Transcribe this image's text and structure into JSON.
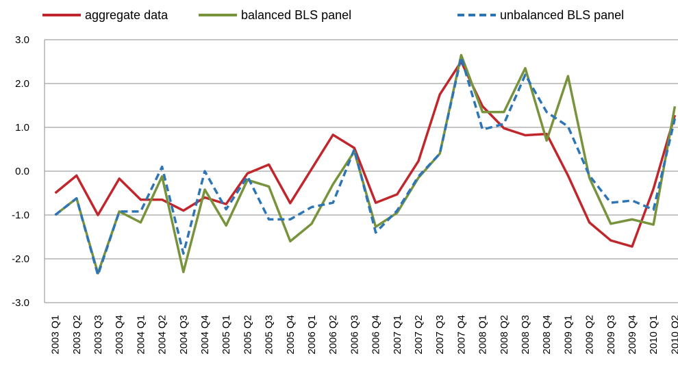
{
  "chart_data": {
    "type": "line",
    "categories": [
      "2003 Q1",
      "2003 Q2",
      "2003 Q3",
      "2003 Q4",
      "2004 Q1",
      "2004 Q2",
      "2004 Q3",
      "2004 Q4",
      "2005 Q1",
      "2005 Q2",
      "2005 Q3",
      "2005 Q4",
      "2006 Q1",
      "2006 Q2",
      "2006 Q3",
      "2006 Q4",
      "2007 Q1",
      "2007 Q2",
      "2007 Q3",
      "2007 Q4",
      "2008 Q1",
      "2008 Q2",
      "2008 Q3",
      "2008 Q4",
      "2009 Q1",
      "2009 Q2",
      "2009 Q3",
      "2009 Q4",
      "2010 Q1",
      "2010 Q2"
    ],
    "series": [
      {
        "name": "aggregate data",
        "color": "#c0272d",
        "dash": false,
        "values": [
          -0.5,
          -0.1,
          -1.0,
          -0.17,
          -0.65,
          -0.65,
          -0.9,
          -0.6,
          -0.75,
          -0.05,
          0.15,
          -0.73,
          0.05,
          0.83,
          0.53,
          -0.72,
          -0.53,
          0.23,
          1.75,
          2.5,
          1.48,
          0.98,
          0.82,
          0.85,
          -0.1,
          -1.17,
          -1.58,
          -1.72,
          -0.4,
          1.28
        ]
      },
      {
        "name": "balanced BLS panel",
        "color": "#77933c",
        "dash": false,
        "values": [
          -1.0,
          -0.62,
          -2.33,
          -0.92,
          -1.17,
          -0.12,
          -2.3,
          -0.42,
          -1.24,
          -0.2,
          -0.35,
          -1.6,
          -1.2,
          -0.3,
          0.45,
          -1.27,
          -0.95,
          -0.15,
          0.4,
          2.65,
          1.35,
          1.35,
          2.35,
          0.7,
          2.17,
          -0.15,
          -1.2,
          -1.1,
          -1.22,
          1.48
        ]
      },
      {
        "name": "unbalanced BLS panel",
        "color": "#2e75b6",
        "dash": true,
        "values": [
          -1.0,
          -0.62,
          -2.37,
          -0.92,
          -0.92,
          0.1,
          -1.88,
          0.0,
          -0.87,
          -0.12,
          -1.1,
          -1.1,
          -0.82,
          -0.72,
          0.5,
          -1.4,
          -0.9,
          -0.12,
          0.4,
          2.6,
          0.95,
          1.08,
          2.2,
          1.35,
          1.02,
          -0.1,
          -0.72,
          -0.67,
          -0.88,
          1.2
        ]
      }
    ],
    "ylim": [
      -3,
      3
    ],
    "yticks": [
      {
        "value": -3,
        "label": "-3.0"
      },
      {
        "value": -2,
        "label": "-2.0"
      },
      {
        "value": -1,
        "label": "-1.0"
      },
      {
        "value": 0,
        "label": "0.0"
      },
      {
        "value": 1,
        "label": "1.0"
      },
      {
        "value": 2,
        "label": "2.0"
      },
      {
        "value": 3,
        "label": "3.0"
      }
    ],
    "grid": true,
    "legend": "top"
  }
}
